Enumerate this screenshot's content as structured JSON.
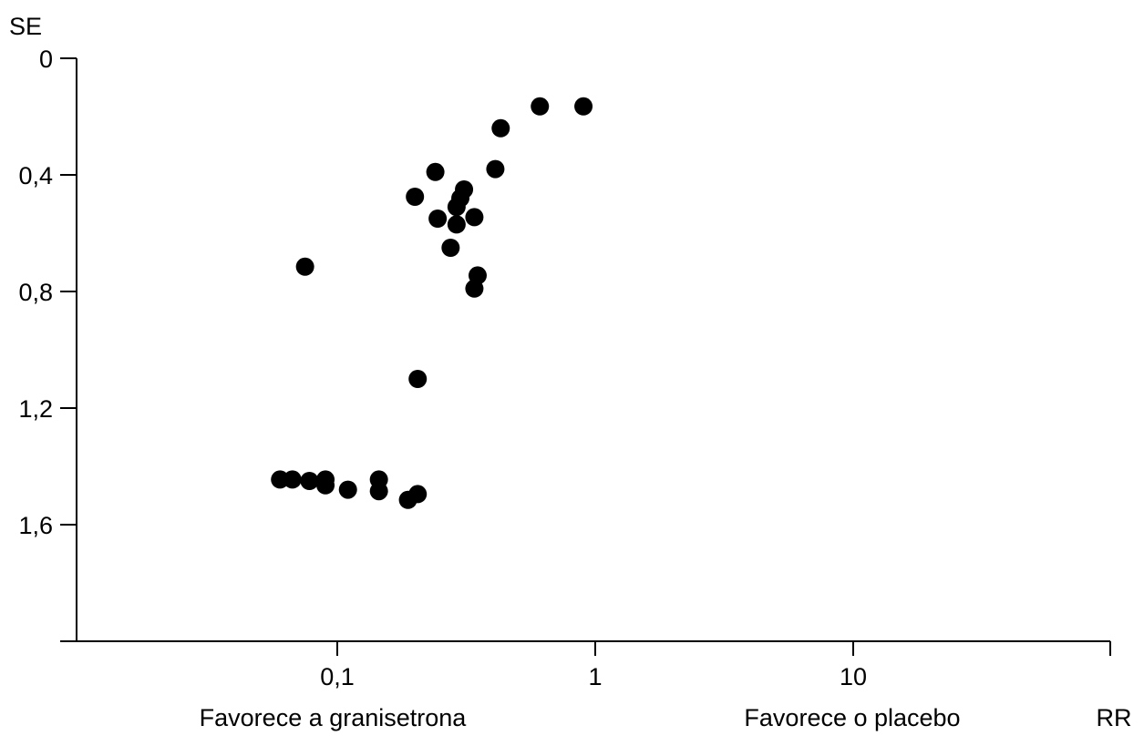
{
  "chart_data": {
    "type": "scatter",
    "title": "",
    "xlabel": "RR",
    "ylabel": "SE",
    "x_scale": "log",
    "x_ticks": [
      0.1,
      1,
      10
    ],
    "x_tick_labels": [
      "0,1",
      "1",
      "10"
    ],
    "xlim": [
      0.01,
      100
    ],
    "y_inverted": true,
    "y_ticks": [
      0,
      0.4,
      0.8,
      1.2,
      1.6
    ],
    "y_tick_labels": [
      "0",
      "0,4",
      "0,8",
      "1,2",
      "1,6"
    ],
    "ylim": [
      0,
      2.0
    ],
    "grid": false,
    "annotations": {
      "left": "Favorece a granisetrona",
      "right": "Favorece o placebo"
    },
    "points": [
      {
        "x": 0.61,
        "y": 0.165
      },
      {
        "x": 0.9,
        "y": 0.165
      },
      {
        "x": 0.43,
        "y": 0.24
      },
      {
        "x": 0.41,
        "y": 0.38
      },
      {
        "x": 0.24,
        "y": 0.39
      },
      {
        "x": 0.31,
        "y": 0.45
      },
      {
        "x": 0.2,
        "y": 0.475
      },
      {
        "x": 0.3,
        "y": 0.48
      },
      {
        "x": 0.29,
        "y": 0.51
      },
      {
        "x": 0.245,
        "y": 0.55
      },
      {
        "x": 0.34,
        "y": 0.545
      },
      {
        "x": 0.29,
        "y": 0.57
      },
      {
        "x": 0.275,
        "y": 0.65
      },
      {
        "x": 0.075,
        "y": 0.715
      },
      {
        "x": 0.35,
        "y": 0.745
      },
      {
        "x": 0.34,
        "y": 0.79
      },
      {
        "x": 0.205,
        "y": 1.1
      },
      {
        "x": 0.06,
        "y": 1.445
      },
      {
        "x": 0.067,
        "y": 1.445
      },
      {
        "x": 0.078,
        "y": 1.45
      },
      {
        "x": 0.09,
        "y": 1.445
      },
      {
        "x": 0.09,
        "y": 1.465
      },
      {
        "x": 0.11,
        "y": 1.48
      },
      {
        "x": 0.145,
        "y": 1.445
      },
      {
        "x": 0.145,
        "y": 1.485
      },
      {
        "x": 0.205,
        "y": 1.495
      },
      {
        "x": 0.188,
        "y": 1.515
      }
    ]
  }
}
